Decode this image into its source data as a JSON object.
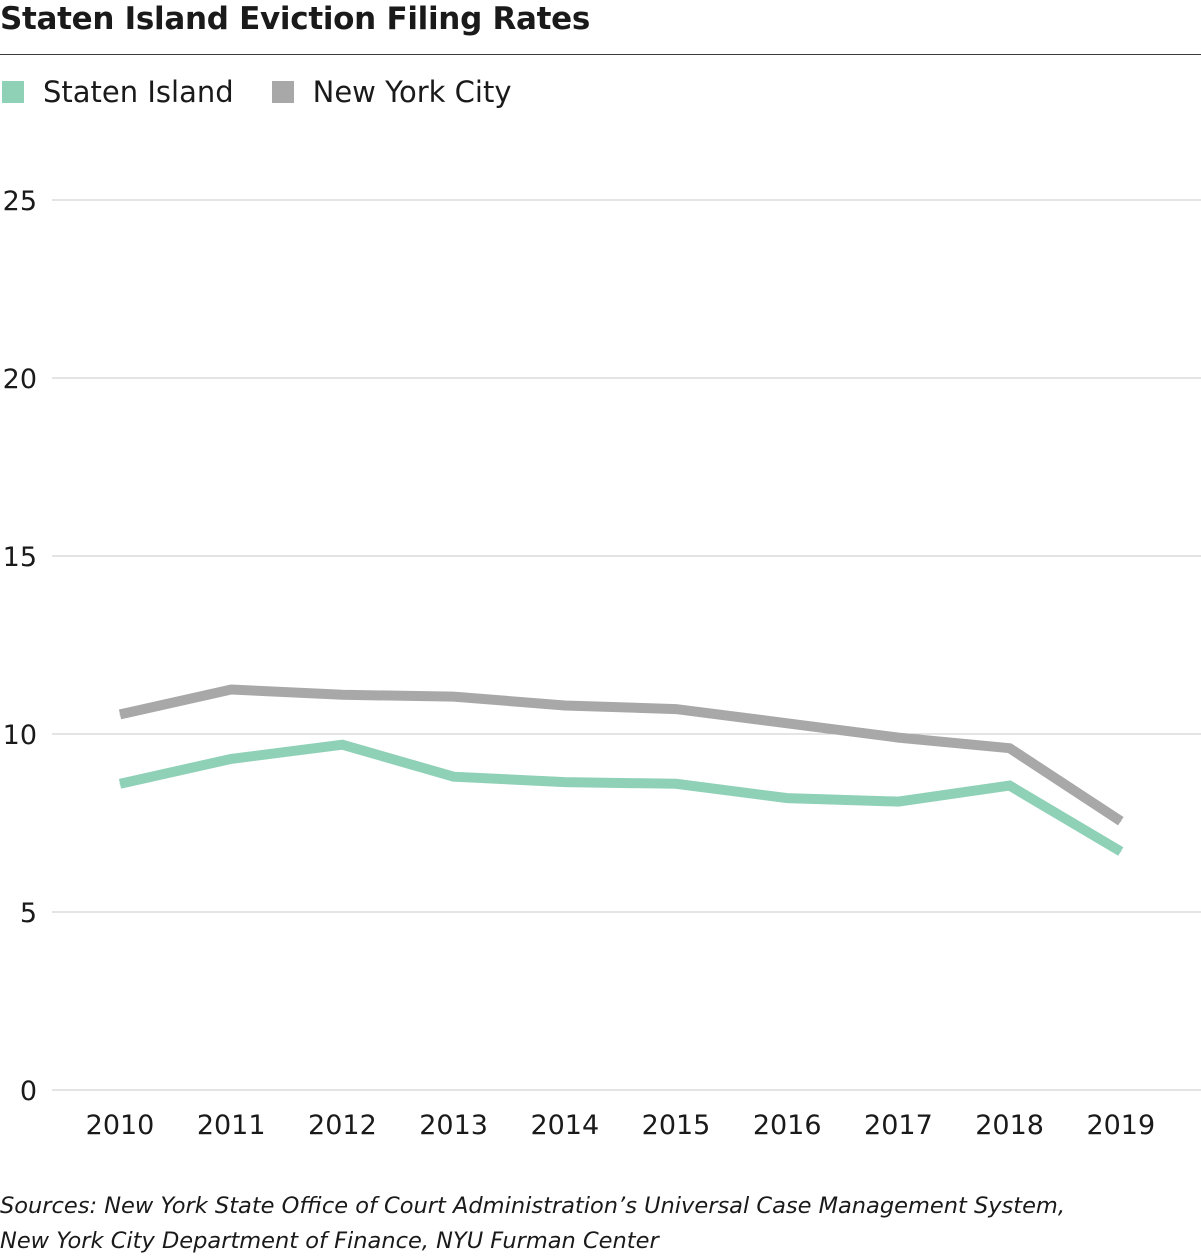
{
  "title": "Staten Island Eviction Filing Rates",
  "colors": {
    "staten_island": "#8fd1b7",
    "new_york_city": "#a8a8a8",
    "grid": "#c8c8c8",
    "text": "#1a1a1a"
  },
  "legend": [
    {
      "label": "Staten Island",
      "color": "#8fd1b7"
    },
    {
      "label": "New York City",
      "color": "#a8a8a8"
    }
  ],
  "sources": {
    "line1": "Sources: New York State Office of Court Administration’s Universal Case Management System,",
    "line2": "New York City Department of Finance, NYU Furman Center"
  },
  "chart_data": {
    "type": "line",
    "title": "Staten Island Eviction Filing Rates",
    "xlabel": "",
    "ylabel": "",
    "x": [
      "2010",
      "2011",
      "2012",
      "2013",
      "2014",
      "2015",
      "2016",
      "2017",
      "2018",
      "2019"
    ],
    "ylim": [
      0,
      25
    ],
    "yticks": [
      "0",
      "5",
      "10",
      "15",
      "20",
      "25"
    ],
    "grid": true,
    "legend_position": "top-left",
    "series": [
      {
        "name": "Staten Island",
        "color": "#8fd1b7",
        "values": [
          8.6,
          9.3,
          9.7,
          8.8,
          8.65,
          8.6,
          8.2,
          8.1,
          8.55,
          6.7
        ]
      },
      {
        "name": "New York City",
        "color": "#a8a8a8",
        "values": [
          10.55,
          11.25,
          11.1,
          11.05,
          10.8,
          10.7,
          10.3,
          9.9,
          9.6,
          7.55
        ]
      }
    ]
  }
}
